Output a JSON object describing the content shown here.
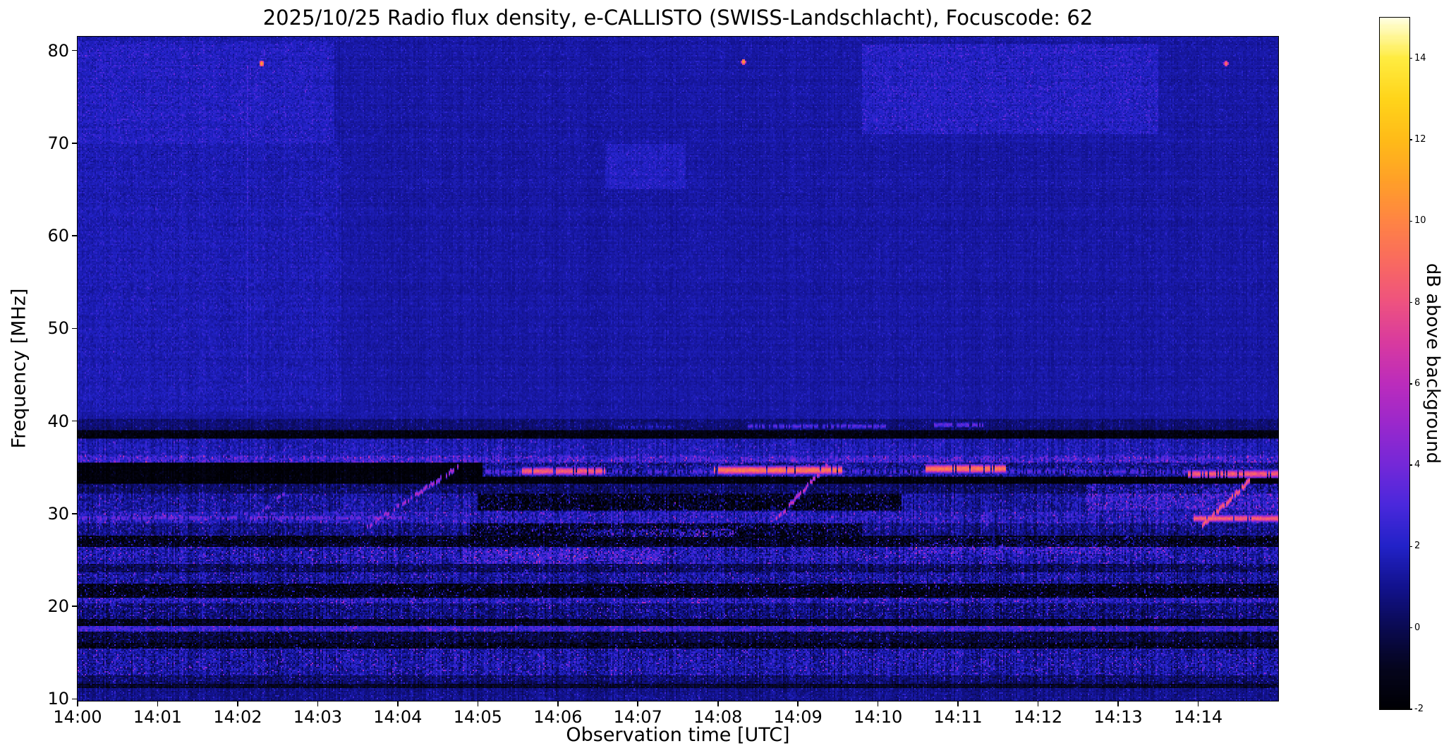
{
  "title": "2025/10/25  Radio flux density, e-CALLISTO (SWISS-Landschlacht), Focuscode: 62",
  "chart_data": {
    "type": "heatmap",
    "title": "2025/10/25  Radio flux density, e-CALLISTO (SWISS-Landschlacht), Focuscode: 62",
    "xlabel": "Observation time [UTC]",
    "ylabel": "Frequency [MHz]",
    "x_tick_labels": [
      "14:00",
      "14:01",
      "14:02",
      "14:03",
      "14:04",
      "14:05",
      "14:06",
      "14:07",
      "14:08",
      "14:09",
      "14:10",
      "14:11",
      "14:12",
      "14:13",
      "14:14"
    ],
    "x_range_minutes": [
      0,
      15
    ],
    "y_ticks": [
      10,
      20,
      30,
      40,
      50,
      60,
      70,
      80
    ],
    "y_range": [
      9.8,
      81.5
    ],
    "grid": false,
    "colorbar": {
      "label": "dB above background",
      "ticks": [
        -2,
        0,
        2,
        4,
        6,
        8,
        10,
        12,
        14
      ],
      "vmin": -2,
      "vmax": 15
    },
    "colormap_stops": [
      [
        -2,
        "#000004"
      ],
      [
        -1,
        "#05051e"
      ],
      [
        0,
        "#0a0a52"
      ],
      [
        1,
        "#12128e"
      ],
      [
        2,
        "#2222c8"
      ],
      [
        3,
        "#4a28dc"
      ],
      [
        4,
        "#7428d8"
      ],
      [
        5,
        "#9a28cc"
      ],
      [
        6,
        "#bc2cbc"
      ],
      [
        7,
        "#d83aa0"
      ],
      [
        8,
        "#ee5280"
      ],
      [
        9,
        "#f96a60"
      ],
      [
        10,
        "#ff8444"
      ],
      [
        11,
        "#ffa028"
      ],
      [
        12,
        "#ffbb18"
      ],
      [
        13,
        "#ffd41a"
      ],
      [
        14,
        "#ffec40"
      ],
      [
        15,
        "#ffffe0"
      ]
    ],
    "noise_seed": 7,
    "background_bands": [
      {
        "f_lo": 40.2,
        "f_hi": 81.6,
        "level": 1.35,
        "noise": 0.3,
        "stripe": 0.16
      },
      {
        "f_lo": 39.1,
        "f_hi": 40.2,
        "level": 0.5,
        "noise": 0.45,
        "stripe": 0.3
      },
      {
        "f_lo": 38.1,
        "f_hi": 39.1,
        "level": -1.6,
        "noise": 0.5,
        "stripe": 0.2
      },
      {
        "f_lo": 36.3,
        "f_hi": 38.1,
        "level": 1.6,
        "noise": 0.7,
        "stripe": 0.5
      },
      {
        "f_lo": 35.6,
        "f_hi": 36.3,
        "level": 2.4,
        "noise": 1.3,
        "stripe": 0.8
      },
      {
        "f_lo": 33.2,
        "f_hi": 35.6,
        "level": -1.8,
        "noise": 0.45,
        "stripe": 0.3
      },
      {
        "f_lo": 32.2,
        "f_hi": 33.2,
        "level": 0.2,
        "noise": 0.8,
        "stripe": 0.5
      },
      {
        "f_lo": 30.2,
        "f_hi": 32.2,
        "level": 1.2,
        "noise": 1.0,
        "stripe": 0.6
      },
      {
        "f_lo": 29.0,
        "f_hi": 30.2,
        "level": 1.8,
        "noise": 1.2,
        "stripe": 0.7
      },
      {
        "f_lo": 27.6,
        "f_hi": 29.0,
        "level": 0.8,
        "noise": 1.0,
        "stripe": 0.6
      },
      {
        "f_lo": 26.4,
        "f_hi": 27.6,
        "level": -1.2,
        "noise": 1.2,
        "stripe": 0.4
      },
      {
        "f_lo": 24.6,
        "f_hi": 26.4,
        "level": 1.5,
        "noise": 1.2,
        "stripe": 0.7
      },
      {
        "f_lo": 23.6,
        "f_hi": 24.6,
        "level": 0.2,
        "noise": 0.9,
        "stripe": 0.5
      },
      {
        "f_lo": 22.4,
        "f_hi": 23.6,
        "level": 1.2,
        "noise": 1.1,
        "stripe": 0.6
      },
      {
        "f_lo": 20.9,
        "f_hi": 22.4,
        "level": -1.3,
        "noise": 1.3,
        "stripe": 0.4
      },
      {
        "f_lo": 20.3,
        "f_hi": 20.9,
        "level": 1.8,
        "noise": 1.2,
        "stripe": 0.6
      },
      {
        "f_lo": 18.6,
        "f_hi": 20.3,
        "level": 0.6,
        "noise": 1.1,
        "stripe": 0.6
      },
      {
        "f_lo": 17.9,
        "f_hi": 18.6,
        "level": -1.2,
        "noise": 0.9,
        "stripe": 0.4
      },
      {
        "f_lo": 17.2,
        "f_hi": 17.9,
        "level": 2.4,
        "noise": 0.9,
        "stripe": 0.6
      },
      {
        "f_lo": 16.1,
        "f_hi": 17.2,
        "level": -0.4,
        "noise": 0.9,
        "stripe": 0.5
      },
      {
        "f_lo": 15.5,
        "f_hi": 16.1,
        "level": -1.3,
        "noise": 1.2,
        "stripe": 0.4
      },
      {
        "f_lo": 12.6,
        "f_hi": 15.5,
        "level": 1.3,
        "noise": 1.1,
        "stripe": 0.7
      },
      {
        "f_lo": 11.6,
        "f_hi": 12.6,
        "level": 0.4,
        "noise": 0.8,
        "stripe": 0.5
      },
      {
        "f_lo": 11.1,
        "f_hi": 11.6,
        "level": -0.8,
        "noise": 0.6,
        "stripe": 0.3
      },
      {
        "f_lo": 9.8,
        "f_hi": 11.1,
        "level": 0.9,
        "noise": 0.5,
        "stripe": 0.4
      }
    ],
    "patches": [
      {
        "t0": 5.05,
        "t1": 15,
        "f0": 34.0,
        "f1": 35.6,
        "level": 2.7,
        "noise": 1.1
      },
      {
        "t0": 0,
        "t1": 3.2,
        "f0": 70,
        "f1": 81.0,
        "level": 0.5,
        "noise": 0.45
      },
      {
        "t0": 0,
        "t1": 3.3,
        "f0": 41,
        "f1": 70,
        "level": 0.25,
        "noise": 0.3
      },
      {
        "t0": 9.8,
        "t1": 13.5,
        "f0": 71,
        "f1": 80.8,
        "level": 0.55,
        "noise": 0.5
      },
      {
        "t0": 6.6,
        "t1": 7.6,
        "f0": 65,
        "f1": 70,
        "level": 0.5,
        "noise": 0.3
      },
      {
        "t0": 5.0,
        "t1": 10.3,
        "f0": 30.3,
        "f1": 32.2,
        "level": -2.6,
        "noise": 1.5
      },
      {
        "t0": 4.9,
        "t1": 9.8,
        "f0": 27.6,
        "f1": 29.0,
        "level": -1.8,
        "noise": 1.5
      },
      {
        "t0": 6.3,
        "t1": 8.2,
        "f0": 27.5,
        "f1": 28.4,
        "level": 1.6,
        "noise": 1.6
      },
      {
        "t0": 12.6,
        "t1": 15,
        "f0": 30.3,
        "f1": 33.2,
        "level": 0.9,
        "noise": 1.1
      },
      {
        "t0": 4.8,
        "t1": 7.3,
        "f0": 24.6,
        "f1": 26.3,
        "level": 0.7,
        "noise": 1.0
      },
      {
        "t0": 10.4,
        "t1": 13.6,
        "f0": 25.6,
        "f1": 27.4,
        "level": 0.6,
        "noise": 1.0
      }
    ],
    "line_segments": [
      {
        "t0": 5.1,
        "t1": 15,
        "f": 34.55,
        "level": 3.2,
        "hw": 0.35,
        "gap": 0.5
      },
      {
        "t0": 5.55,
        "t1": 6.6,
        "f": 34.6,
        "level": 8.5,
        "hw": 0.45,
        "gap": 0.12
      },
      {
        "t0": 7.95,
        "t1": 9.55,
        "f": 34.7,
        "level": 9.5,
        "hw": 0.5,
        "gap": 0.08
      },
      {
        "t0": 10.6,
        "t1": 11.6,
        "f": 34.85,
        "level": 9.5,
        "hw": 0.5,
        "gap": 0.08
      },
      {
        "t0": 13.85,
        "t1": 15,
        "f": 34.3,
        "level": 8.5,
        "hw": 0.45,
        "gap": 0.12
      },
      {
        "t0": 0,
        "t1": 4.1,
        "f": 29.55,
        "level": 3.8,
        "hw": 0.3,
        "gap": 0.4
      },
      {
        "t0": 4.1,
        "t1": 13.9,
        "f": 29.5,
        "level": 1.7,
        "hw": 0.25,
        "gap": 0.55
      },
      {
        "t0": 13.95,
        "t1": 15,
        "f": 29.5,
        "level": 8.5,
        "hw": 0.4,
        "gap": 0.1
      },
      {
        "t0": 0,
        "t1": 15,
        "f": 35.95,
        "level": 2.0,
        "hw": 0.22,
        "gap": 0.6
      },
      {
        "t0": 8.35,
        "t1": 10.1,
        "f": 39.45,
        "level": 3.2,
        "hw": 0.28,
        "gap": 0.3
      },
      {
        "t0": 10.65,
        "t1": 11.35,
        "f": 39.6,
        "level": 3.6,
        "hw": 0.28,
        "gap": 0.25
      },
      {
        "t0": 6.75,
        "t1": 7.45,
        "f": 39.35,
        "level": 2.0,
        "hw": 0.24,
        "gap": 0.45
      },
      {
        "t0": 0,
        "t1": 15,
        "f": 17.55,
        "level": 2.6,
        "hw": 0.3,
        "gap": 0.45
      }
    ],
    "drift_bursts": [
      {
        "t0": 3.62,
        "f0": 28.6,
        "t1": 4.78,
        "f1": 35.2,
        "level": 5.5,
        "hw": 0.3,
        "gap": 0.3
      },
      {
        "t0": 8.72,
        "f0": 29.3,
        "t1": 9.38,
        "f1": 35.4,
        "level": 6.5,
        "hw": 0.3,
        "gap": 0.25
      },
      {
        "t0": 14.05,
        "f0": 28.7,
        "t1": 14.65,
        "f1": 33.6,
        "level": 8.5,
        "hw": 0.4,
        "gap": 0.15
      },
      {
        "t0": 2.25,
        "f0": 29.8,
        "t1": 2.6,
        "f1": 32.3,
        "level": 4.2,
        "hw": 0.26,
        "gap": 0.4
      }
    ],
    "point_bursts": [
      {
        "t": 2.3,
        "f": 78.6,
        "level": 11,
        "fr": 0.35
      },
      {
        "t": 8.32,
        "f": 78.8,
        "level": 11,
        "fr": 0.35
      },
      {
        "t": 14.35,
        "f": 78.6,
        "level": 9.5,
        "fr": 0.32
      }
    ],
    "vertical_lines": [
      {
        "t": 2.12,
        "f0": 40.5,
        "f1": 78.5,
        "level": 0.85
      }
    ]
  }
}
